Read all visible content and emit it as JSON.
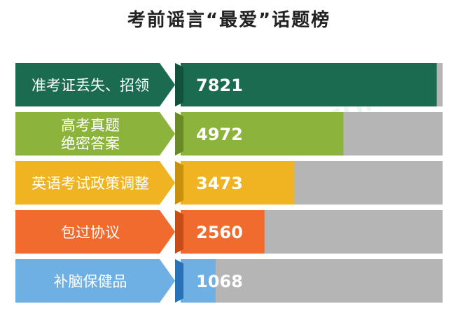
{
  "chart_data": {
    "type": "bar",
    "title": "考前谣言“最爱”话题榜",
    "categories": [
      "准考证丢失、招领",
      "高考真题\n绝密答案",
      "英语考试政策调整",
      "包过协议",
      "补脑保健品"
    ],
    "values": [
      7821,
      4972,
      3473,
      2560,
      1068
    ],
    "xlim": [
      0,
      8000
    ],
    "colors": [
      "#1b6b50",
      "#8cb43c",
      "#f0b422",
      "#f26b2e",
      "#6fb0e4"
    ],
    "dark_colors": [
      "#12513b",
      "#6a8a28",
      "#c98f0e",
      "#c64d17",
      "#2a72b8"
    ],
    "track_color": "#b5b5b5",
    "grid": false,
    "legend": "none"
  },
  "watermark": "SHFQ.COM"
}
